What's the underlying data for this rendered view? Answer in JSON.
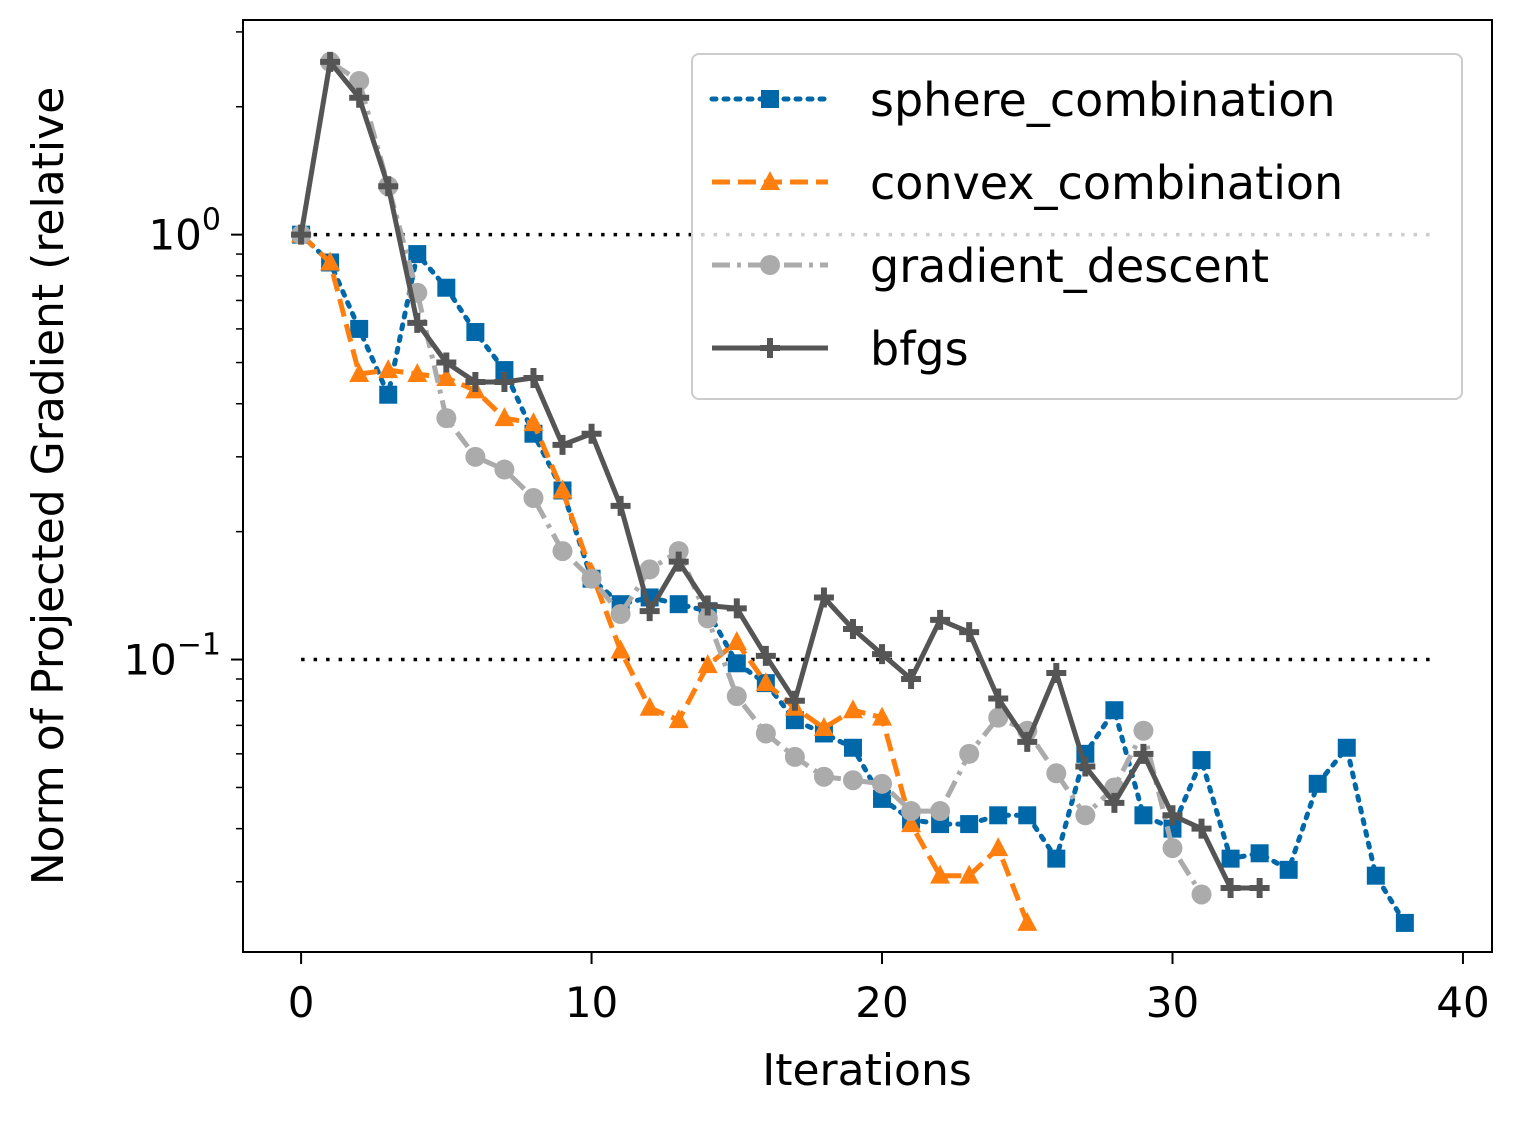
{
  "chart_data": {
    "type": "line",
    "xlabel": "Iterations",
    "ylabel": "Norm of Projected Gradient (relative",
    "yscale": "log",
    "xlim": [
      -2,
      41
    ],
    "ylim": [
      0.0205,
      3.2
    ],
    "xticks": [
      {
        "value": 0,
        "label": "0"
      },
      {
        "value": 10,
        "label": "10"
      },
      {
        "value": 20,
        "label": "20"
      },
      {
        "value": 30,
        "label": "30"
      },
      {
        "value": 40,
        "label": "40"
      }
    ],
    "yticks": [
      {
        "value": 1,
        "base": "10",
        "exp": "0"
      },
      {
        "value": 0.1,
        "base": "10",
        "exp": "−1"
      }
    ],
    "grid": false,
    "legend_position": "top-right",
    "reference_lines": [
      {
        "y": 1,
        "x": [
          0,
          39
        ],
        "color": "#000000",
        "style": "dotted"
      },
      {
        "y": 0.1,
        "x": [
          0,
          39
        ],
        "color": "#000000",
        "style": "dotted"
      }
    ],
    "series": [
      {
        "name": "sphere_combination",
        "color": "#0068a9",
        "line_style": "dotted",
        "marker": "square",
        "x": [
          0,
          1,
          2,
          3,
          4,
          5,
          6,
          7,
          8,
          9,
          10,
          11,
          12,
          13,
          14,
          15,
          16,
          17,
          18,
          19,
          20,
          21,
          22,
          23,
          24,
          25,
          26,
          27,
          28,
          29,
          30,
          31,
          32,
          33,
          34,
          35,
          36,
          37,
          38
        ],
        "values": [
          1.0,
          0.86,
          0.6,
          0.42,
          0.9,
          0.75,
          0.59,
          0.48,
          0.34,
          0.25,
          0.155,
          0.135,
          0.14,
          0.135,
          0.13,
          0.098,
          0.088,
          0.072,
          0.067,
          0.062,
          0.047,
          0.042,
          0.041,
          0.041,
          0.043,
          0.043,
          0.034,
          0.06,
          0.076,
          0.043,
          0.04,
          0.058,
          0.034,
          0.035,
          0.032,
          0.051,
          0.062,
          0.031,
          0.024
        ]
      },
      {
        "name": "convex_combination",
        "color": "#ff7f0e",
        "line_style": "dashed",
        "marker": "triangle",
        "x": [
          0,
          1,
          2,
          3,
          4,
          5,
          6,
          7,
          8,
          9,
          10,
          11,
          12,
          13,
          14,
          15,
          16,
          17,
          18,
          19,
          20,
          21,
          22,
          23,
          24,
          25
        ],
        "values": [
          1.0,
          0.86,
          0.47,
          0.48,
          0.47,
          0.46,
          0.43,
          0.37,
          0.36,
          0.25,
          0.16,
          0.105,
          0.077,
          0.072,
          0.097,
          0.11,
          0.088,
          0.077,
          0.069,
          0.076,
          0.073,
          0.041,
          0.031,
          0.031,
          0.036,
          0.024
        ]
      },
      {
        "name": "gradient_descent",
        "color": "#ababab",
        "line_style": "dashdot",
        "marker": "circle",
        "x": [
          0,
          1,
          2,
          3,
          4,
          5,
          6,
          7,
          8,
          9,
          10,
          11,
          12,
          13,
          14,
          15,
          16,
          17,
          18,
          19,
          20,
          21,
          22,
          23,
          24,
          25,
          26,
          27,
          28,
          29,
          30,
          31
        ],
        "values": [
          1.0,
          2.55,
          2.3,
          1.3,
          0.73,
          0.37,
          0.3,
          0.28,
          0.24,
          0.18,
          0.155,
          0.128,
          0.163,
          0.18,
          0.125,
          0.082,
          0.067,
          0.059,
          0.053,
          0.052,
          0.051,
          0.044,
          0.044,
          0.06,
          0.073,
          0.068,
          0.054,
          0.043,
          0.05,
          0.068,
          0.036,
          0.028
        ]
      },
      {
        "name": "bfgs",
        "color": "#555555",
        "line_style": "solid",
        "marker": "plus",
        "x": [
          0,
          1,
          2,
          3,
          4,
          5,
          6,
          7,
          8,
          9,
          10,
          11,
          12,
          13,
          14,
          15,
          16,
          17,
          18,
          19,
          20,
          21,
          22,
          23,
          24,
          25,
          26,
          27,
          28,
          29,
          30,
          31,
          32,
          33
        ],
        "values": [
          1.0,
          2.55,
          2.1,
          1.3,
          0.62,
          0.5,
          0.45,
          0.45,
          0.46,
          0.32,
          0.34,
          0.23,
          0.13,
          0.17,
          0.134,
          0.132,
          0.102,
          0.08,
          0.14,
          0.118,
          0.103,
          0.09,
          0.124,
          0.116,
          0.081,
          0.064,
          0.093,
          0.056,
          0.046,
          0.06,
          0.043,
          0.04,
          0.029,
          0.029
        ]
      }
    ]
  }
}
